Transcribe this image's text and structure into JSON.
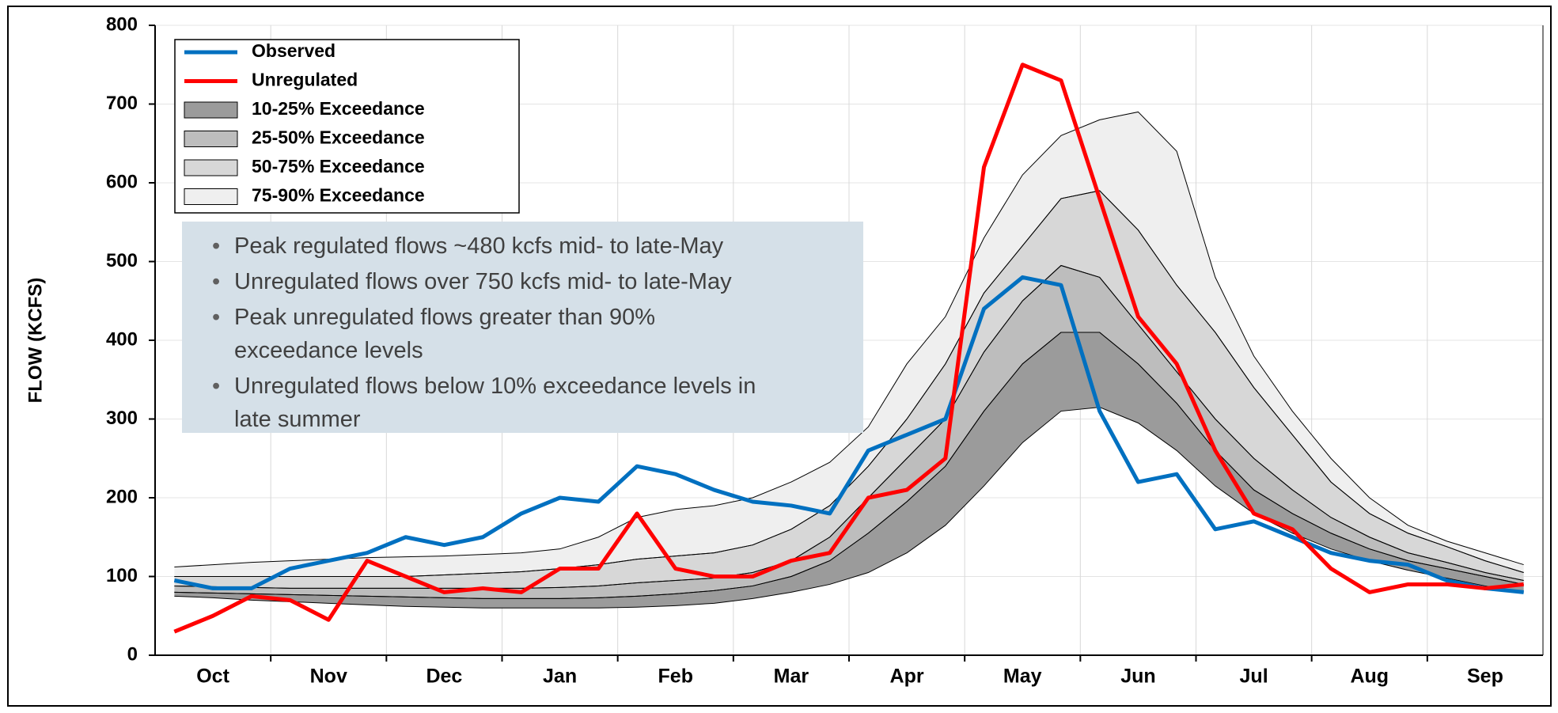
{
  "chart_data": {
    "type": "line",
    "y_label": "FLOW (KCFS)",
    "categories": [
      null,
      "Oct",
      null,
      null,
      "Nov",
      null,
      null,
      "Dec",
      null,
      null,
      "Jan",
      null,
      null,
      "Feb",
      null,
      null,
      "Mar",
      null,
      null,
      "Apr",
      null,
      null,
      "May",
      null,
      null,
      "Jun",
      null,
      null,
      "Jul",
      null,
      null,
      "Aug",
      null,
      null,
      "Sep",
      null
    ],
    "ylim": [
      0,
      800
    ],
    "yticks": [
      0,
      100,
      200,
      300,
      400,
      500,
      600,
      700,
      800
    ],
    "grid": true,
    "series": [
      {
        "name": "Observed",
        "color": "#0070c0",
        "values": [
          95,
          85,
          85,
          110,
          120,
          130,
          150,
          140,
          150,
          180,
          200,
          195,
          240,
          230,
          210,
          195,
          190,
          180,
          260,
          280,
          300,
          440,
          480,
          470,
          310,
          220,
          230,
          160,
          170,
          150,
          130,
          120,
          115,
          95,
          85,
          80
        ]
      },
      {
        "name": "Unregulated",
        "color": "#ff0000",
        "values": [
          30,
          50,
          75,
          70,
          45,
          120,
          100,
          80,
          85,
          80,
          110,
          110,
          180,
          110,
          100,
          100,
          120,
          130,
          200,
          210,
          250,
          620,
          750,
          730,
          580,
          430,
          370,
          260,
          180,
          160,
          110,
          80,
          90,
          90,
          85,
          90
        ]
      }
    ],
    "bands": [
      {
        "name": "10-25% Exceedance",
        "color": "#9b9b9b",
        "low": [
          75,
          73,
          70,
          68,
          66,
          64,
          62,
          61,
          60,
          60,
          60,
          60,
          61,
          63,
          66,
          72,
          80,
          90,
          105,
          130,
          165,
          215,
          270,
          310,
          315,
          295,
          260,
          215,
          180,
          155,
          135,
          120,
          108,
          98,
          88,
          80
        ],
        "high": [
          80,
          79,
          78,
          77,
          76,
          75,
          74,
          73,
          72,
          72,
          72,
          73,
          75,
          78,
          82,
          88,
          100,
          120,
          155,
          195,
          240,
          310,
          370,
          410,
          410,
          370,
          320,
          260,
          210,
          180,
          155,
          135,
          120,
          110,
          100,
          90
        ]
      },
      {
        "name": "25-50% Exceedance",
        "color": "#bdbdbd",
        "low": [
          80,
          79,
          78,
          77,
          76,
          75,
          74,
          73,
          72,
          72,
          72,
          73,
          75,
          78,
          82,
          88,
          100,
          120,
          155,
          195,
          240,
          310,
          370,
          410,
          410,
          370,
          320,
          260,
          210,
          180,
          155,
          135,
          120,
          110,
          100,
          90
        ],
        "high": [
          88,
          87,
          86,
          85,
          85,
          85,
          85,
          85,
          85,
          85,
          86,
          88,
          92,
          95,
          98,
          105,
          120,
          150,
          200,
          250,
          300,
          385,
          450,
          495,
          480,
          420,
          360,
          300,
          250,
          210,
          175,
          150,
          130,
          118,
          105,
          95
        ]
      },
      {
        "name": "50-75% Exceedance",
        "color": "#d7d7d7",
        "low": [
          88,
          87,
          86,
          85,
          85,
          85,
          85,
          85,
          85,
          85,
          86,
          88,
          92,
          95,
          98,
          105,
          120,
          150,
          200,
          250,
          300,
          385,
          450,
          495,
          480,
          420,
          360,
          300,
          250,
          210,
          175,
          150,
          130,
          118,
          105,
          95
        ],
        "high": [
          100,
          100,
          100,
          100,
          100,
          100,
          100,
          102,
          104,
          106,
          110,
          115,
          122,
          126,
          130,
          140,
          160,
          190,
          240,
          300,
          370,
          460,
          520,
          580,
          590,
          540,
          470,
          410,
          340,
          280,
          220,
          180,
          155,
          138,
          120,
          105
        ]
      },
      {
        "name": "75-90% Exceedance",
        "color": "#efefef",
        "low": [
          100,
          100,
          100,
          100,
          100,
          100,
          100,
          102,
          104,
          106,
          110,
          115,
          122,
          126,
          130,
          140,
          160,
          190,
          240,
          300,
          370,
          460,
          520,
          580,
          590,
          540,
          470,
          410,
          340,
          280,
          220,
          180,
          155,
          138,
          120,
          105
        ],
        "high": [
          112,
          115,
          118,
          120,
          122,
          124,
          125,
          126,
          128,
          130,
          135,
          150,
          175,
          185,
          190,
          200,
          220,
          245,
          290,
          370,
          430,
          530,
          610,
          660,
          680,
          690,
          640,
          480,
          380,
          310,
          250,
          200,
          165,
          145,
          130,
          115
        ]
      }
    ],
    "notes": [
      [
        "Peak regulated flows ~480 kcfs mid- to late-May"
      ],
      [
        "Unregulated flows over 750 kcfs mid- to late-May"
      ],
      [
        "Peak unregulated flows greater than 90%",
        "exceedance levels"
      ],
      [
        "Unregulated flows below 10% exceedance levels in",
        "late summer"
      ]
    ]
  }
}
